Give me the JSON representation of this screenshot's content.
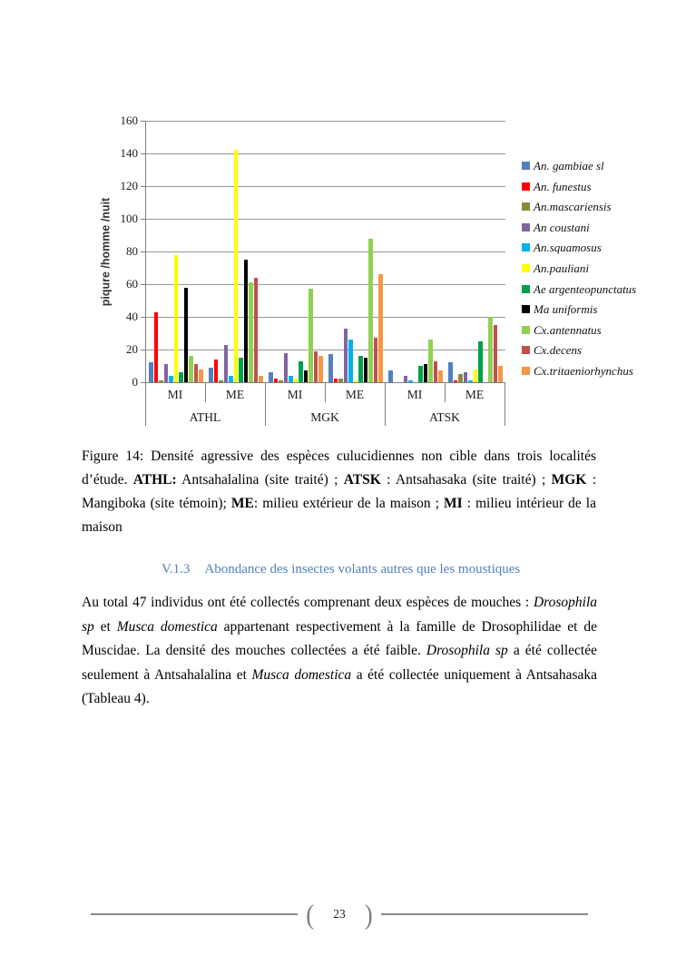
{
  "figure_caption": {
    "segments": [
      {
        "t": "Figure 14: Densité agressive des espèces  culucidiennes non cible dans trois localités d’étude.  "
      },
      {
        "t": "ATHL:",
        "b": 1
      },
      {
        "t": " Antsahalalina (site traité) ; "
      },
      {
        "t": "ATSK",
        "b": 1
      },
      {
        "t": " : Antsahasaka (site traité) ; "
      },
      {
        "t": "MGK",
        "b": 1
      },
      {
        "t": " : Mangiboka (site témoin); "
      },
      {
        "t": "ME",
        "b": 1
      },
      {
        "t": ": milieu extérieur de la maison ;  "
      },
      {
        "t": "MI",
        "b": 1
      },
      {
        "t": " : milieu intérieur de la maison"
      }
    ]
  },
  "section_heading": {
    "number": "V.1.3",
    "title": "Abondance des insectes volants autres que les moustiques",
    "color": "#4F81BD"
  },
  "paragraph": {
    "segments": [
      {
        "t": "Au total 47 individus ont été collectés comprenant deux espèces de mouches : "
      },
      {
        "t": "Drosophila sp",
        "i": 1
      },
      {
        "t": " et "
      },
      {
        "t": "Musca domestica",
        "i": 1
      },
      {
        "t": "  appartenant respectivement à la famille de Drosophilidae et de Muscidae. La densité des mouches collectées a été faible. "
      },
      {
        "t": "Drosophila sp",
        "i": 1
      },
      {
        "t": " a été collectée seulement à Antsahalalina et "
      },
      {
        "t": "Musca domestica",
        "i": 1
      },
      {
        "t": " a été collectée uniquement à Antsahasaka (Tableau 4)."
      }
    ]
  },
  "footer": {
    "page_number": "23",
    "bracket_left": "(",
    "bracket_right": ")"
  },
  "chart_data": {
    "type": "bar",
    "title": "",
    "xlabel": "",
    "ylabel": "piqure /homme /nuit",
    "ylim": [
      0,
      160
    ],
    "ytick_step": 20,
    "grid": true,
    "legend_position": "right",
    "categories": [
      "ATHL-MI",
      "ATHL-ME",
      "MGK-MI",
      "MGK-ME",
      "ATSK-MI",
      "ATSK-ME"
    ],
    "group_labels": [
      "MI",
      "ME",
      "MI",
      "ME",
      "MI",
      "ME"
    ],
    "site_labels": [
      "ATHL",
      "MGK",
      "ATSK"
    ],
    "series": [
      {
        "name": "An. gambiae sl",
        "color": "#4F81BD",
        "values": [
          12,
          9,
          6,
          17,
          7,
          12
        ]
      },
      {
        "name": "An. funestus",
        "color": "#FF0000",
        "values": [
          43,
          14,
          2,
          2,
          0,
          1
        ]
      },
      {
        "name": "An.mascariensis",
        "color": "#898A3C",
        "values": [
          1,
          1,
          1,
          2,
          0,
          5
        ]
      },
      {
        "name": "An coustani",
        "color": "#8064A2",
        "values": [
          11,
          23,
          18,
          33,
          4,
          6
        ]
      },
      {
        "name": "An.squamosus",
        "color": "#00B0F0",
        "values": [
          4,
          4,
          4,
          26,
          1,
          1
        ]
      },
      {
        "name": "An.pauliani",
        "color": "#FFFF00",
        "values": [
          78,
          142,
          2,
          1,
          0,
          8
        ]
      },
      {
        "name": "Ae argenteopunctatus",
        "color": "#00A04C",
        "values": [
          6,
          15,
          13,
          16,
          10,
          25
        ]
      },
      {
        "name": "Ma uniformis",
        "color": "#000000",
        "values": [
          58,
          75,
          7,
          15,
          11,
          0
        ]
      },
      {
        "name": "Cx.antennatus",
        "color": "#92D050",
        "values": [
          16,
          61,
          57,
          88,
          26,
          40
        ]
      },
      {
        "name": "Cx.decens",
        "color": "#C0504D",
        "values": [
          11,
          64,
          19,
          27,
          13,
          35
        ]
      },
      {
        "name": "Cx.tritaeniorhynchus",
        "color": "#F79646",
        "values": [
          8,
          4,
          16,
          66,
          7,
          10
        ]
      }
    ]
  }
}
